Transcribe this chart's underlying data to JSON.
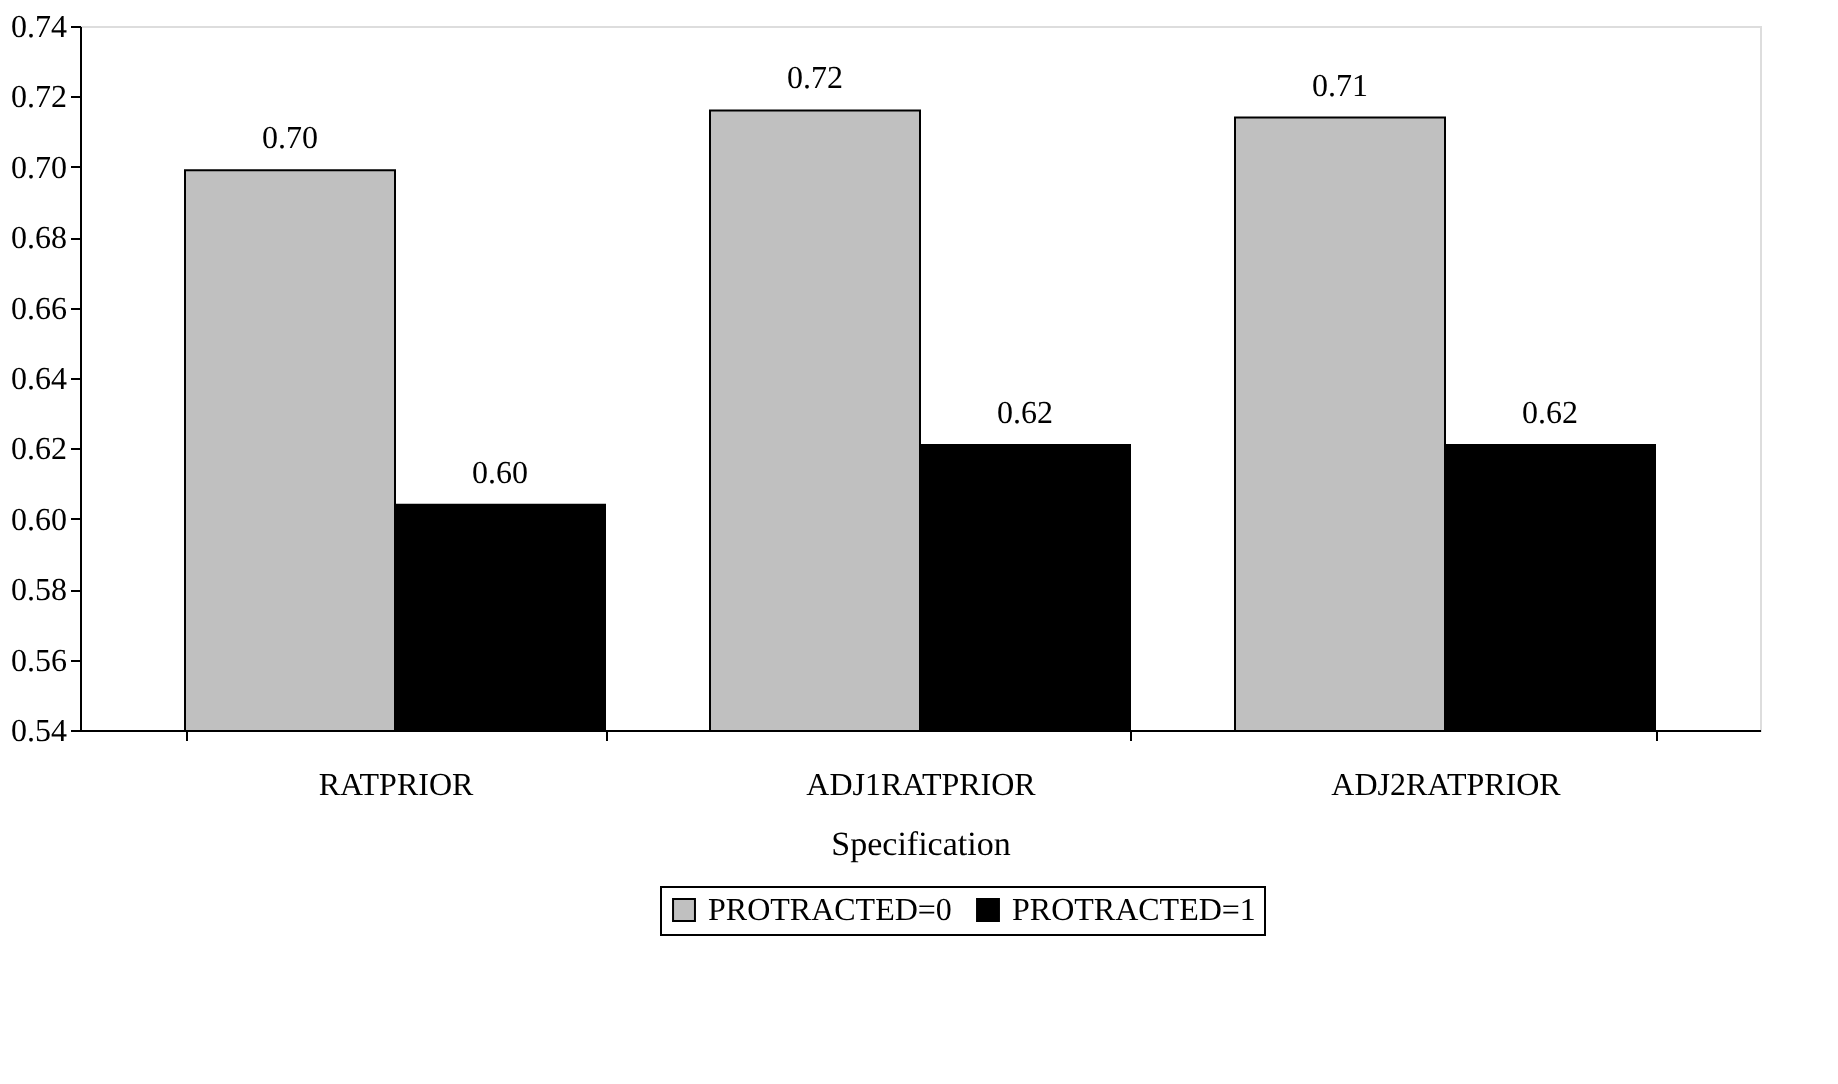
{
  "chart_data": {
    "type": "bar",
    "xlabel": "Specification",
    "categories": [
      "RATPRIOR",
      "ADJ1RATPRIOR",
      "ADJ2RATPRIOR"
    ],
    "series": [
      {
        "name": "PROTRACTED=0",
        "color": "#c0c0c0",
        "values": [
          0.699,
          0.716,
          0.714
        ],
        "value_labels": [
          "0.70",
          "0.72",
          "0.71"
        ]
      },
      {
        "name": "PROTRACTED=1",
        "color": "#000000",
        "values": [
          0.604,
          0.621,
          0.621
        ],
        "value_labels": [
          "0.60",
          "0.62",
          "0.62"
        ]
      }
    ],
    "ylim": [
      0.54,
      0.74
    ],
    "yticks": [
      0.54,
      0.56,
      0.58,
      {
        "value": 0.6,
        "label": "0.60"
      },
      0.62,
      0.64,
      0.66,
      0.68,
      {
        "value": 0.7,
        "label": "0.70"
      },
      0.72,
      0.74
    ],
    "grid": false,
    "legend": "bottom"
  }
}
